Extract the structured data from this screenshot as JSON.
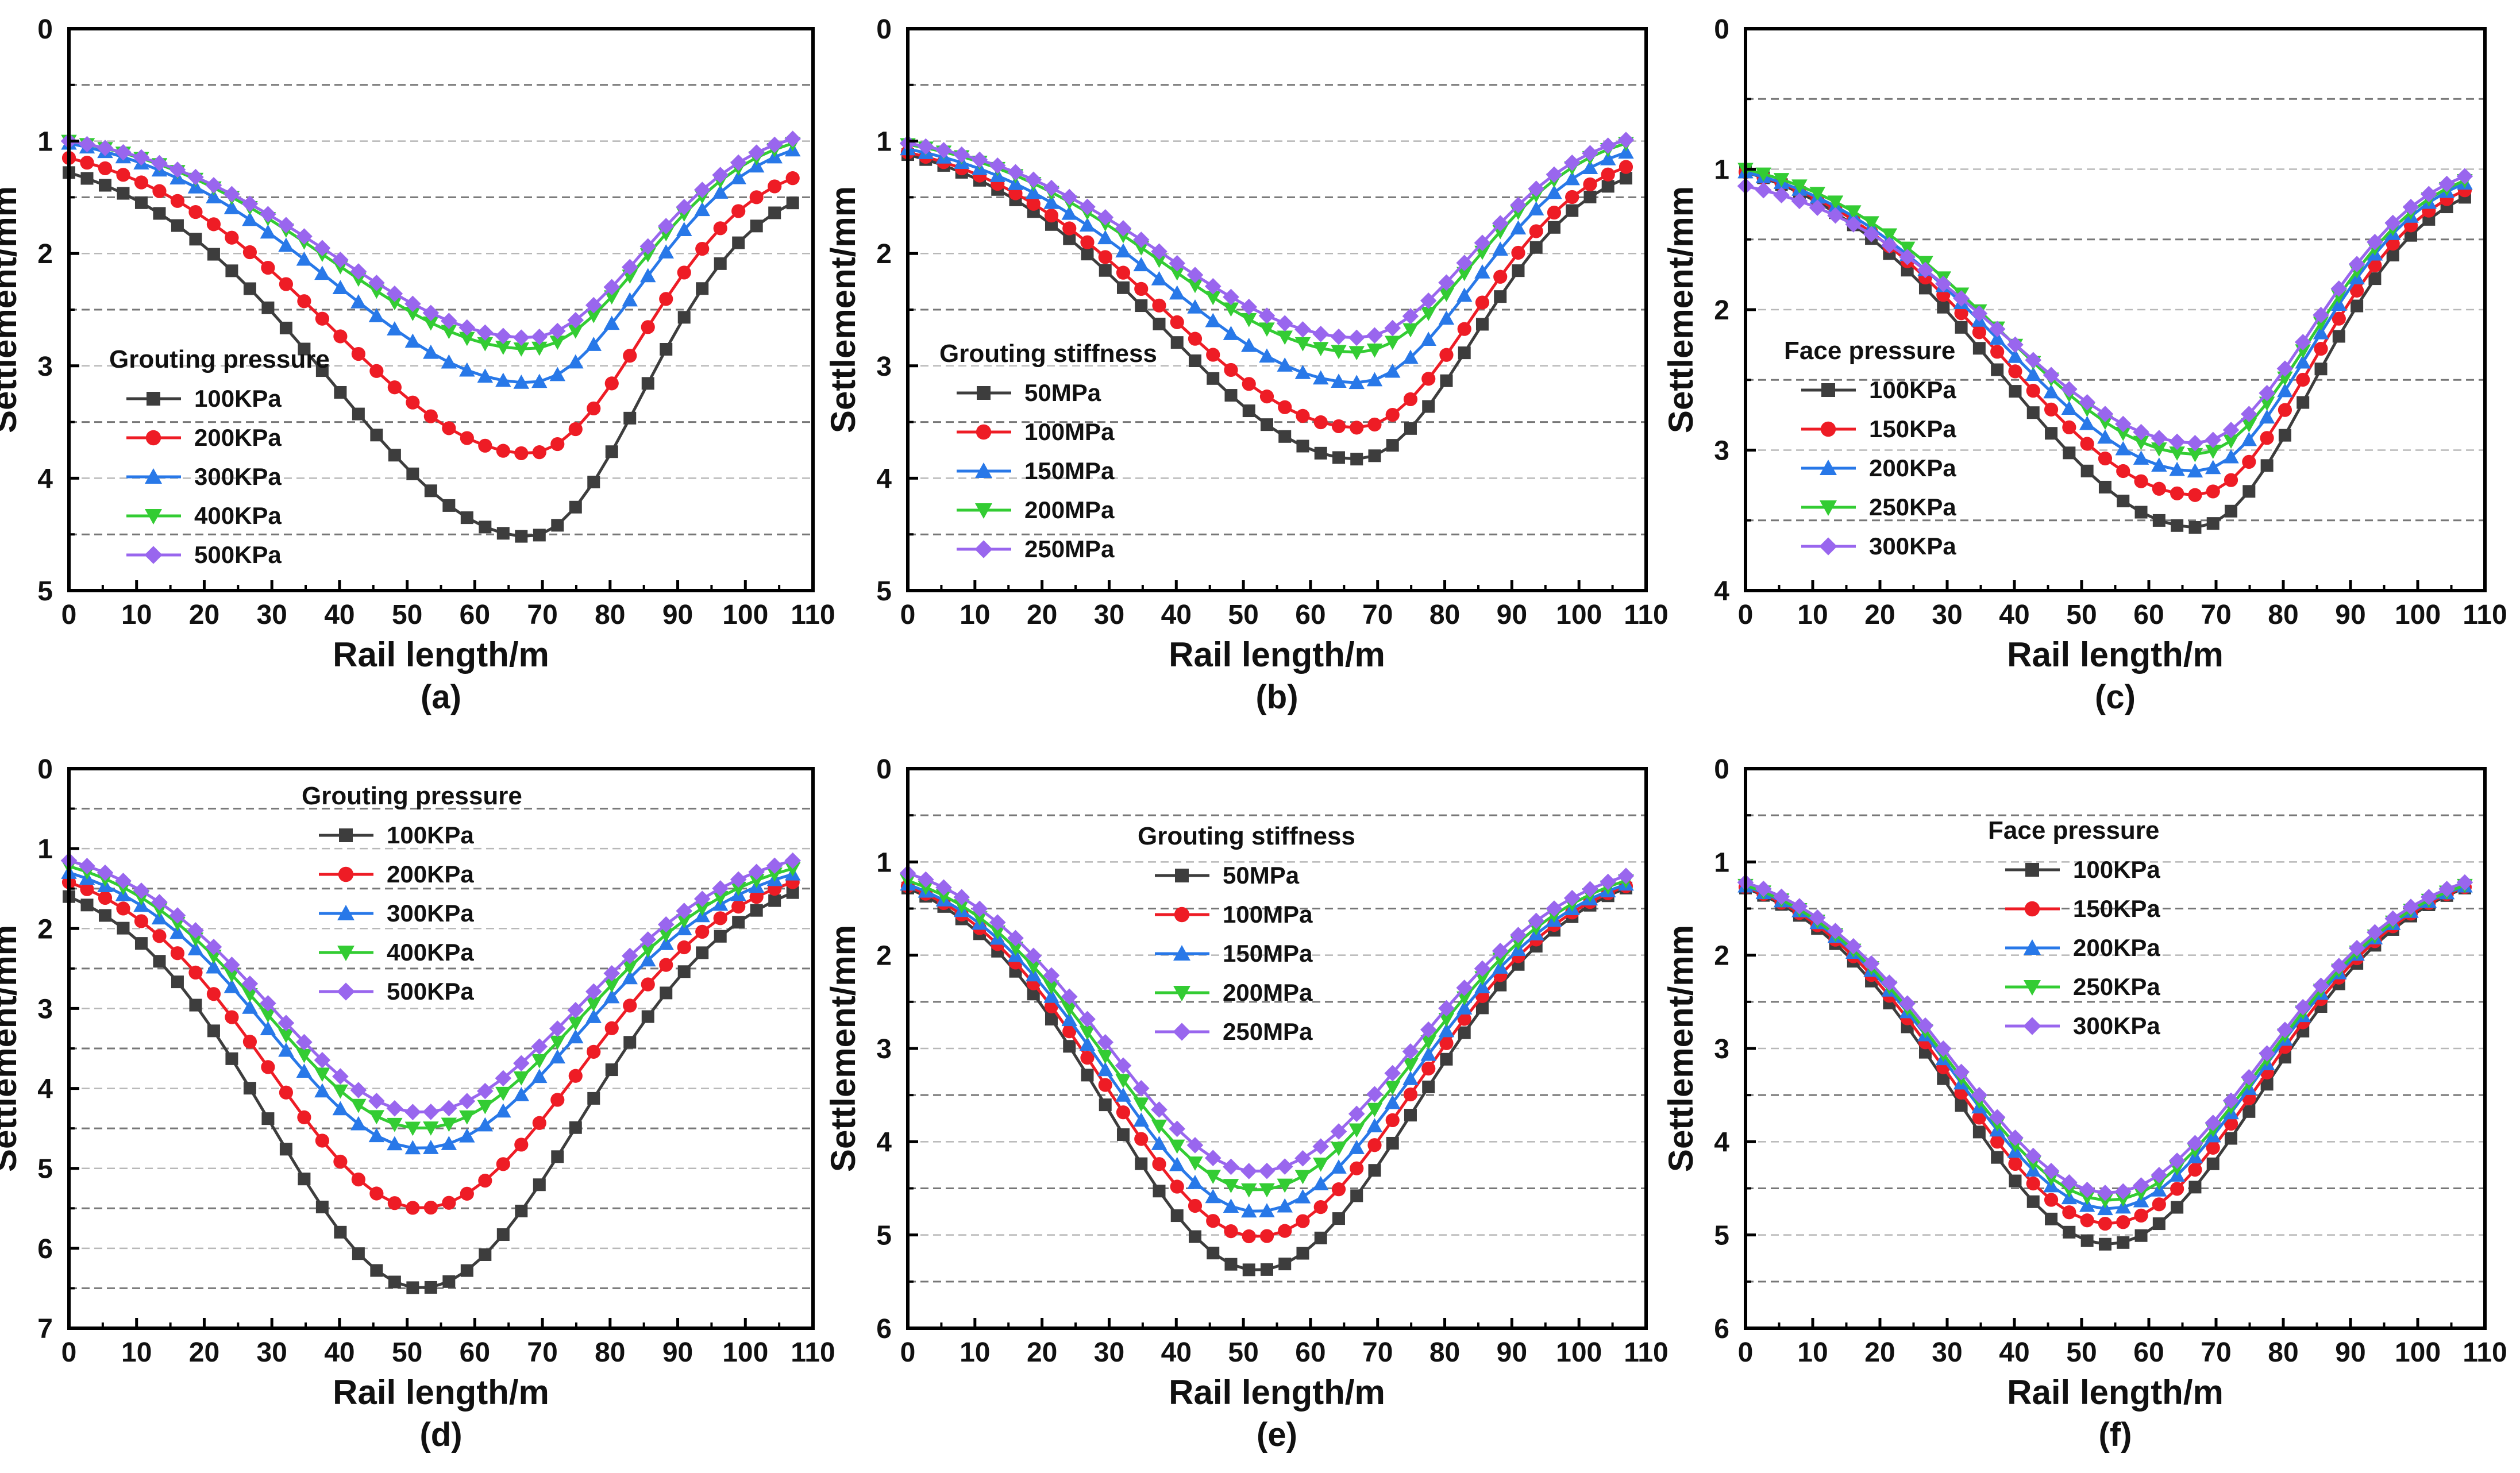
{
  "chart_data": [
    {
      "type": "line",
      "panel_label": "(a)",
      "xlabel": "Rail length/m",
      "ylabel": "Settlement/mm",
      "xlim": [
        0,
        110
      ],
      "ylim": [
        0,
        5
      ],
      "y_inverted": true,
      "xticks": [
        "0",
        "10",
        "20",
        "30",
        "40",
        "50",
        "60",
        "70",
        "80",
        "90",
        "100",
        "110"
      ],
      "yticks": [
        "0",
        "1",
        "2",
        "3",
        "4",
        "5"
      ],
      "grid": "dashed horizontal every 0.5",
      "legend_title": "Grouting pressure",
      "legend_position": "center-left",
      "x_range": [
        0,
        107
      ],
      "point_count": 41,
      "series": [
        {
          "name": "100KPa",
          "center": 68,
          "peak": 4.52,
          "left_end": 1.28,
          "right_end": 1.55,
          "color": "#3d3d3d",
          "marker": "square"
        },
        {
          "name": "200KPa",
          "center": 68,
          "peak": 3.78,
          "left_end": 1.15,
          "right_end": 1.33,
          "color": "#ee1c25",
          "marker": "circle"
        },
        {
          "name": "300KPa",
          "center": 68,
          "peak": 3.15,
          "left_end": 1.02,
          "right_end": 1.08,
          "color": "#2878e8",
          "marker": "triangle-up"
        },
        {
          "name": "400KPa",
          "center": 68,
          "peak": 2.85,
          "left_end": 1.0,
          "right_end": 1.02,
          "color": "#33cc33",
          "marker": "triangle-down"
        },
        {
          "name": "500KPa",
          "center": 68,
          "peak": 2.75,
          "left_end": 1.0,
          "right_end": 0.98,
          "color": "#9966ee",
          "marker": "diamond"
        }
      ]
    },
    {
      "type": "line",
      "panel_label": "(b)",
      "xlabel": "Rail length/m",
      "ylabel": "Settlement/mm",
      "xlim": [
        0,
        110
      ],
      "ylim": [
        0,
        5
      ],
      "y_inverted": true,
      "xticks": [
        "0",
        "10",
        "20",
        "30",
        "40",
        "50",
        "60",
        "70",
        "80",
        "90",
        "100",
        "110"
      ],
      "yticks": [
        "0",
        "1",
        "2",
        "3",
        "4",
        "5"
      ],
      "grid": "dashed horizontal every 0.5",
      "legend_title": "Grouting stiffness",
      "legend_position": "center-left",
      "x_range": [
        0,
        107
      ],
      "point_count": 41,
      "series": [
        {
          "name": "50MPa",
          "center": 67,
          "peak": 3.83,
          "left_end": 1.12,
          "right_end": 1.33,
          "color": "#3d3d3d",
          "marker": "square"
        },
        {
          "name": "100MPa",
          "center": 67,
          "peak": 3.55,
          "left_end": 1.1,
          "right_end": 1.23,
          "color": "#ee1c25",
          "marker": "circle"
        },
        {
          "name": "150MPa",
          "center": 67,
          "peak": 3.15,
          "left_end": 1.07,
          "right_end": 1.1,
          "color": "#2878e8",
          "marker": "triangle-up"
        },
        {
          "name": "200MPa",
          "center": 67,
          "peak": 2.88,
          "left_end": 1.03,
          "right_end": 1.02,
          "color": "#33cc33",
          "marker": "triangle-down"
        },
        {
          "name": "250MPa",
          "center": 67,
          "peak": 2.75,
          "left_end": 1.02,
          "right_end": 0.99,
          "color": "#9966ee",
          "marker": "diamond"
        }
      ]
    },
    {
      "type": "line",
      "panel_label": "(c)",
      "xlabel": "Rail length/m",
      "ylabel": "Settlement/mm",
      "xlim": [
        0,
        110
      ],
      "ylim": [
        0,
        4
      ],
      "y_inverted": true,
      "xticks": [
        "0",
        "10",
        "20",
        "30",
        "40",
        "50",
        "60",
        "70",
        "80",
        "90",
        "100",
        "110"
      ],
      "yticks": [
        "0",
        "1",
        "2",
        "3",
        "4"
      ],
      "grid": "dashed horizontal every 0.5",
      "legend_title": "Face pressure",
      "legend_position": "center-left",
      "x_range": [
        0,
        107
      ],
      "point_count": 41,
      "series": [
        {
          "name": "100KPa",
          "center": 67,
          "peak": 3.55,
          "left_end": 1.02,
          "right_end": 1.2,
          "color": "#3d3d3d",
          "marker": "square"
        },
        {
          "name": "150KPa",
          "center": 67,
          "peak": 3.32,
          "left_end": 1.02,
          "right_end": 1.15,
          "color": "#ee1c25",
          "marker": "circle"
        },
        {
          "name": "200KPa",
          "center": 67,
          "peak": 3.15,
          "left_end": 1.02,
          "right_end": 1.1,
          "color": "#2878e8",
          "marker": "triangle-up"
        },
        {
          "name": "250KPa",
          "center": 67,
          "peak": 3.03,
          "left_end": 1.0,
          "right_end": 1.08,
          "color": "#33cc33",
          "marker": "triangle-down"
        },
        {
          "name": "300KPa",
          "center": 67,
          "peak": 2.95,
          "left_end": 1.12,
          "right_end": 1.05,
          "color": "#9966ee",
          "marker": "diamond"
        }
      ]
    },
    {
      "type": "line",
      "panel_label": "(d)",
      "xlabel": "Rail length/m",
      "ylabel": "Settlement/mm",
      "xlim": [
        0,
        110
      ],
      "ylim": [
        0,
        7
      ],
      "y_inverted": true,
      "xticks": [
        "0",
        "10",
        "20",
        "30",
        "40",
        "50",
        "60",
        "70",
        "80",
        "90",
        "100",
        "110"
      ],
      "yticks": [
        "0",
        "1",
        "2",
        "3",
        "4",
        "5",
        "6",
        "7"
      ],
      "grid": "dashed horizontal every 0.5",
      "legend_title": "Grouting pressure",
      "legend_position": "top-center",
      "x_range": [
        0,
        107
      ],
      "point_count": 41,
      "series": [
        {
          "name": "100KPa",
          "center": 52,
          "peak": 6.5,
          "left_end": 1.6,
          "right_end": 1.55,
          "color": "#3d3d3d",
          "marker": "square"
        },
        {
          "name": "200KPa",
          "center": 52,
          "peak": 5.5,
          "left_end": 1.42,
          "right_end": 1.42,
          "color": "#ee1c25",
          "marker": "circle"
        },
        {
          "name": "300KPa",
          "center": 52,
          "peak": 4.75,
          "left_end": 1.3,
          "right_end": 1.32,
          "color": "#2878e8",
          "marker": "triangle-up"
        },
        {
          "name": "400KPa",
          "center": 52,
          "peak": 4.5,
          "left_end": 1.22,
          "right_end": 1.25,
          "color": "#33cc33",
          "marker": "triangle-down"
        },
        {
          "name": "500KPa",
          "center": 52,
          "peak": 4.3,
          "left_end": 1.15,
          "right_end": 1.15,
          "color": "#9966ee",
          "marker": "diamond"
        }
      ]
    },
    {
      "type": "line",
      "panel_label": "(e)",
      "xlabel": "Rail length/m",
      "ylabel": "Settlement/mm",
      "xlim": [
        0,
        110
      ],
      "ylim": [
        0,
        6
      ],
      "y_inverted": true,
      "xticks": [
        "0",
        "10",
        "20",
        "30",
        "40",
        "50",
        "60",
        "70",
        "80",
        "90",
        "100",
        "110"
      ],
      "yticks": [
        "0",
        "1",
        "2",
        "3",
        "4",
        "5",
        "6"
      ],
      "grid": "dashed horizontal every 0.5",
      "legend_title": "Grouting stiffness",
      "legend_position": "top-center",
      "x_range": [
        0,
        107
      ],
      "point_count": 41,
      "series": [
        {
          "name": "50MPa",
          "center": 52,
          "peak": 5.38,
          "left_end": 1.28,
          "right_end": 1.28,
          "color": "#3d3d3d",
          "marker": "square"
        },
        {
          "name": "100MPa",
          "center": 52,
          "peak": 5.02,
          "left_end": 1.26,
          "right_end": 1.26,
          "color": "#ee1c25",
          "marker": "circle"
        },
        {
          "name": "150MPa",
          "center": 52,
          "peak": 4.75,
          "left_end": 1.24,
          "right_end": 1.24,
          "color": "#2878e8",
          "marker": "triangle-up"
        },
        {
          "name": "200MPa",
          "center": 52,
          "peak": 4.52,
          "left_end": 1.2,
          "right_end": 1.2,
          "color": "#33cc33",
          "marker": "triangle-down"
        },
        {
          "name": "250MPa",
          "center": 52,
          "peak": 4.32,
          "left_end": 1.12,
          "right_end": 1.15,
          "color": "#9966ee",
          "marker": "diamond"
        }
      ]
    },
    {
      "type": "line",
      "panel_label": "(f)",
      "xlabel": "Rail length/m",
      "ylabel": "Settlement/mm",
      "xlim": [
        0,
        110
      ],
      "ylim": [
        0,
        6
      ],
      "y_inverted": true,
      "xticks": [
        "0",
        "10",
        "20",
        "30",
        "40",
        "50",
        "60",
        "70",
        "80",
        "90",
        "100",
        "110"
      ],
      "yticks": [
        "0",
        "1",
        "2",
        "3",
        "4",
        "5",
        "6"
      ],
      "grid": "dashed horizontal every 0.5",
      "legend_title": "Face pressure",
      "legend_position": "top-center",
      "x_range": [
        0,
        107
      ],
      "point_count": 41,
      "series": [
        {
          "name": "100KPa",
          "center": 54,
          "peak": 5.1,
          "left_end": 1.28,
          "right_end": 1.28,
          "color": "#3d3d3d",
          "marker": "square"
        },
        {
          "name": "150KPa",
          "center": 54,
          "peak": 4.88,
          "left_end": 1.27,
          "right_end": 1.27,
          "color": "#ee1c25",
          "marker": "circle"
        },
        {
          "name": "200KPa",
          "center": 54,
          "peak": 4.72,
          "left_end": 1.26,
          "right_end": 1.26,
          "color": "#2878e8",
          "marker": "triangle-up"
        },
        {
          "name": "250KPa",
          "center": 54,
          "peak": 4.63,
          "left_end": 1.25,
          "right_end": 1.25,
          "color": "#33cc33",
          "marker": "triangle-down"
        },
        {
          "name": "300KPa",
          "center": 54,
          "peak": 4.55,
          "left_end": 1.22,
          "right_end": 1.22,
          "color": "#9966ee",
          "marker": "diamond"
        }
      ]
    }
  ]
}
